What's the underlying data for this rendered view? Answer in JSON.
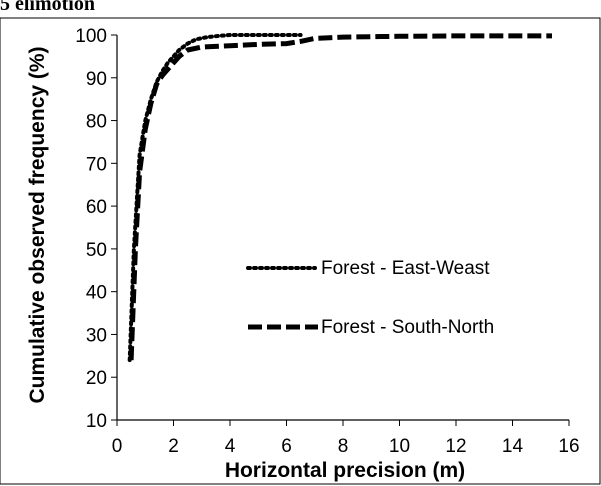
{
  "chart_data": {
    "type": "line",
    "top_fragment": "5   elimotion",
    "xlabel": "Horizontal precision (m)",
    "ylabel": "Cumulative observed frequency (%)",
    "xlim": [
      0,
      16
    ],
    "ylim": [
      10,
      100
    ],
    "x_ticks": [
      "0",
      "2",
      "4",
      "6",
      "8",
      "10",
      "12",
      "14",
      "16"
    ],
    "y_ticks": [
      "10",
      "20",
      "30",
      "40",
      "50",
      "60",
      "70",
      "80",
      "90",
      "100"
    ],
    "grid": false,
    "legend_position": "center-right",
    "series": [
      {
        "name": "Forest - East-Weast",
        "style": "dotted",
        "color": "#000000",
        "x": [
          0.45,
          0.6,
          0.8,
          1.0,
          1.2,
          1.4,
          1.6,
          1.8,
          2.0,
          2.2,
          2.5,
          2.8,
          3.2,
          3.6,
          4.0,
          5.0,
          6.0,
          6.5
        ],
        "y": [
          24,
          50,
          72,
          80,
          85,
          89,
          91.5,
          93.5,
          95,
          96.5,
          98,
          99,
          99.5,
          99.8,
          100,
          100,
          100,
          100
        ]
      },
      {
        "name": "Forest - South-North",
        "style": "dashed",
        "color": "#000000",
        "x": [
          0.5,
          0.65,
          0.8,
          1.0,
          1.2,
          1.4,
          1.6,
          1.8,
          2.0,
          2.2,
          2.5,
          3.0,
          4.0,
          5.0,
          6.0,
          6.5,
          7.0,
          8.0,
          10.0,
          12.0,
          14.0,
          15.4
        ],
        "y": [
          24,
          50,
          68,
          78,
          84,
          88.5,
          90.5,
          92,
          93.5,
          95,
          96.5,
          97.2,
          97.5,
          97.8,
          98,
          98.5,
          99.2,
          99.5,
          99.7,
          99.8,
          99.8,
          99.8
        ]
      }
    ]
  }
}
